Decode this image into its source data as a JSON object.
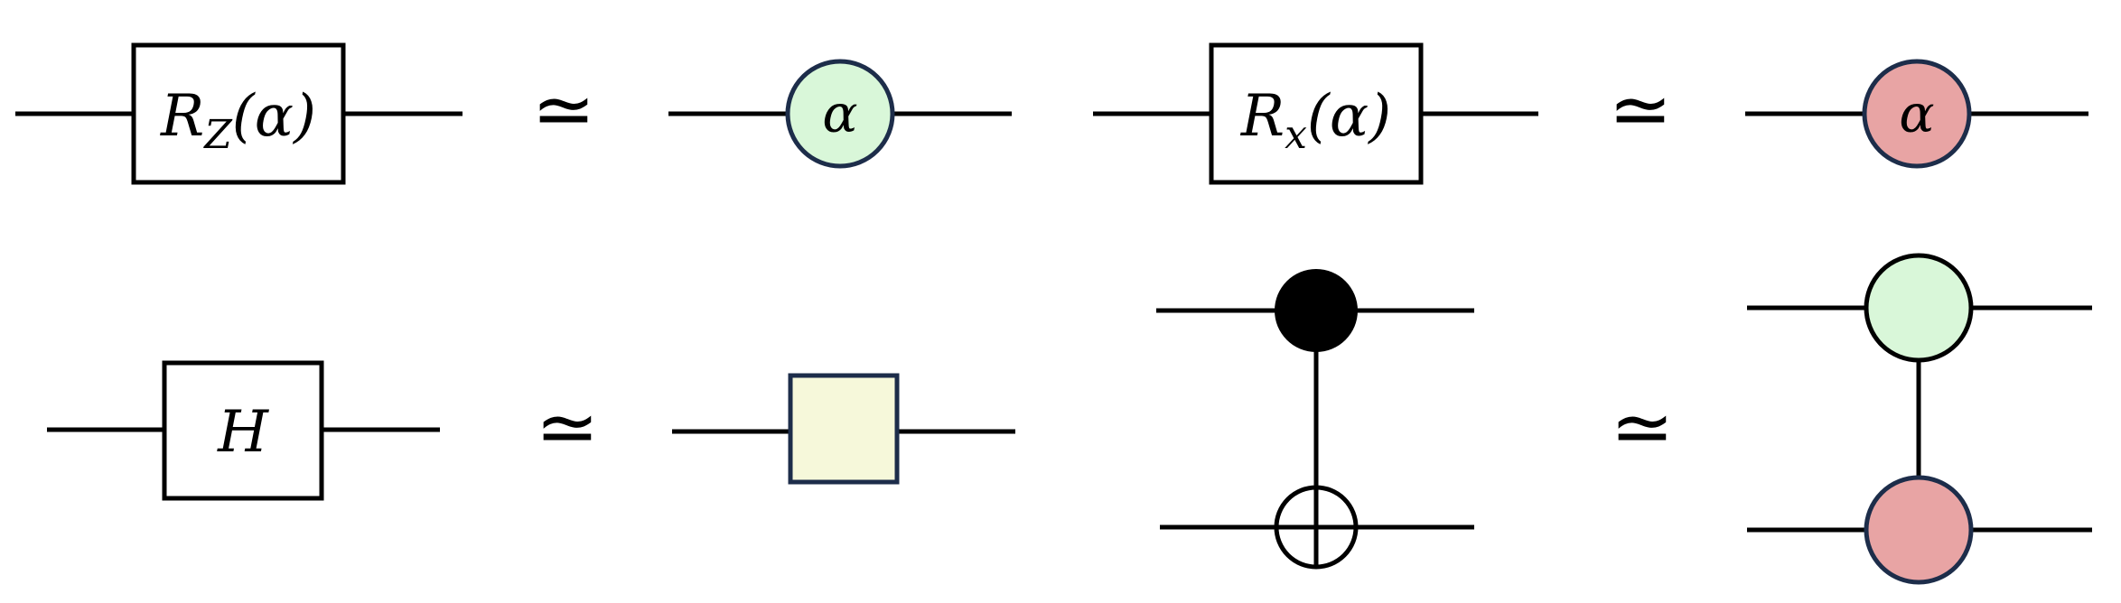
{
  "equivalence_symbol": "≃",
  "colors": {
    "z_spider_fill": "#d9f7d9",
    "x_spider_fill": "#e8a4a4",
    "hadamard_box_fill": "#f6f8da",
    "node_stroke": "#1d2d4a",
    "wire": "#000000"
  },
  "rz": {
    "r": "R",
    "sub": "Z",
    "arg": "(α)"
  },
  "rx": {
    "r": "R",
    "sub": "x",
    "arg": "(α)"
  },
  "z_spider": {
    "label": "α"
  },
  "x_spider": {
    "label": "α"
  },
  "hadamard": {
    "label": "H"
  },
  "cnot": {
    "control": "filled-dot",
    "target": "oplus"
  }
}
